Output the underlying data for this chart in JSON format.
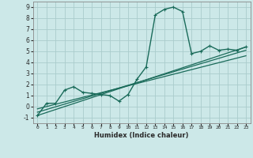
{
  "title": "",
  "xlabel": "Humidex (Indice chaleur)",
  "ylabel": "",
  "background_color": "#cce8e8",
  "grid_color": "#aacccc",
  "line_color": "#1a6b5a",
  "xlim": [
    -0.5,
    23.5
  ],
  "ylim": [
    -1.5,
    9.5
  ],
  "yticks": [
    -1,
    0,
    1,
    2,
    3,
    4,
    5,
    6,
    7,
    8,
    9
  ],
  "xticks": [
    0,
    1,
    2,
    3,
    4,
    5,
    6,
    7,
    8,
    9,
    10,
    11,
    12,
    13,
    14,
    15,
    16,
    17,
    18,
    19,
    20,
    21,
    22,
    23
  ],
  "main_series": {
    "x": [
      0,
      1,
      2,
      3,
      4,
      5,
      6,
      7,
      8,
      9,
      10,
      11,
      12,
      13,
      14,
      15,
      16,
      17,
      18,
      19,
      20,
      21,
      22,
      23
    ],
    "y": [
      -0.8,
      0.3,
      0.3,
      1.5,
      1.8,
      1.3,
      1.2,
      1.1,
      1.0,
      0.5,
      1.1,
      2.5,
      3.6,
      8.3,
      8.8,
      9.0,
      8.6,
      4.8,
      5.0,
      5.5,
      5.1,
      5.2,
      5.1,
      5.4
    ]
  },
  "trend_lines": [
    {
      "x0": 0,
      "y0": -0.8,
      "x1": 23,
      "y1": 5.4
    },
    {
      "x0": 0,
      "y0": -0.5,
      "x1": 23,
      "y1": 5.1
    },
    {
      "x0": 0,
      "y0": -0.2,
      "x1": 23,
      "y1": 4.6
    }
  ]
}
